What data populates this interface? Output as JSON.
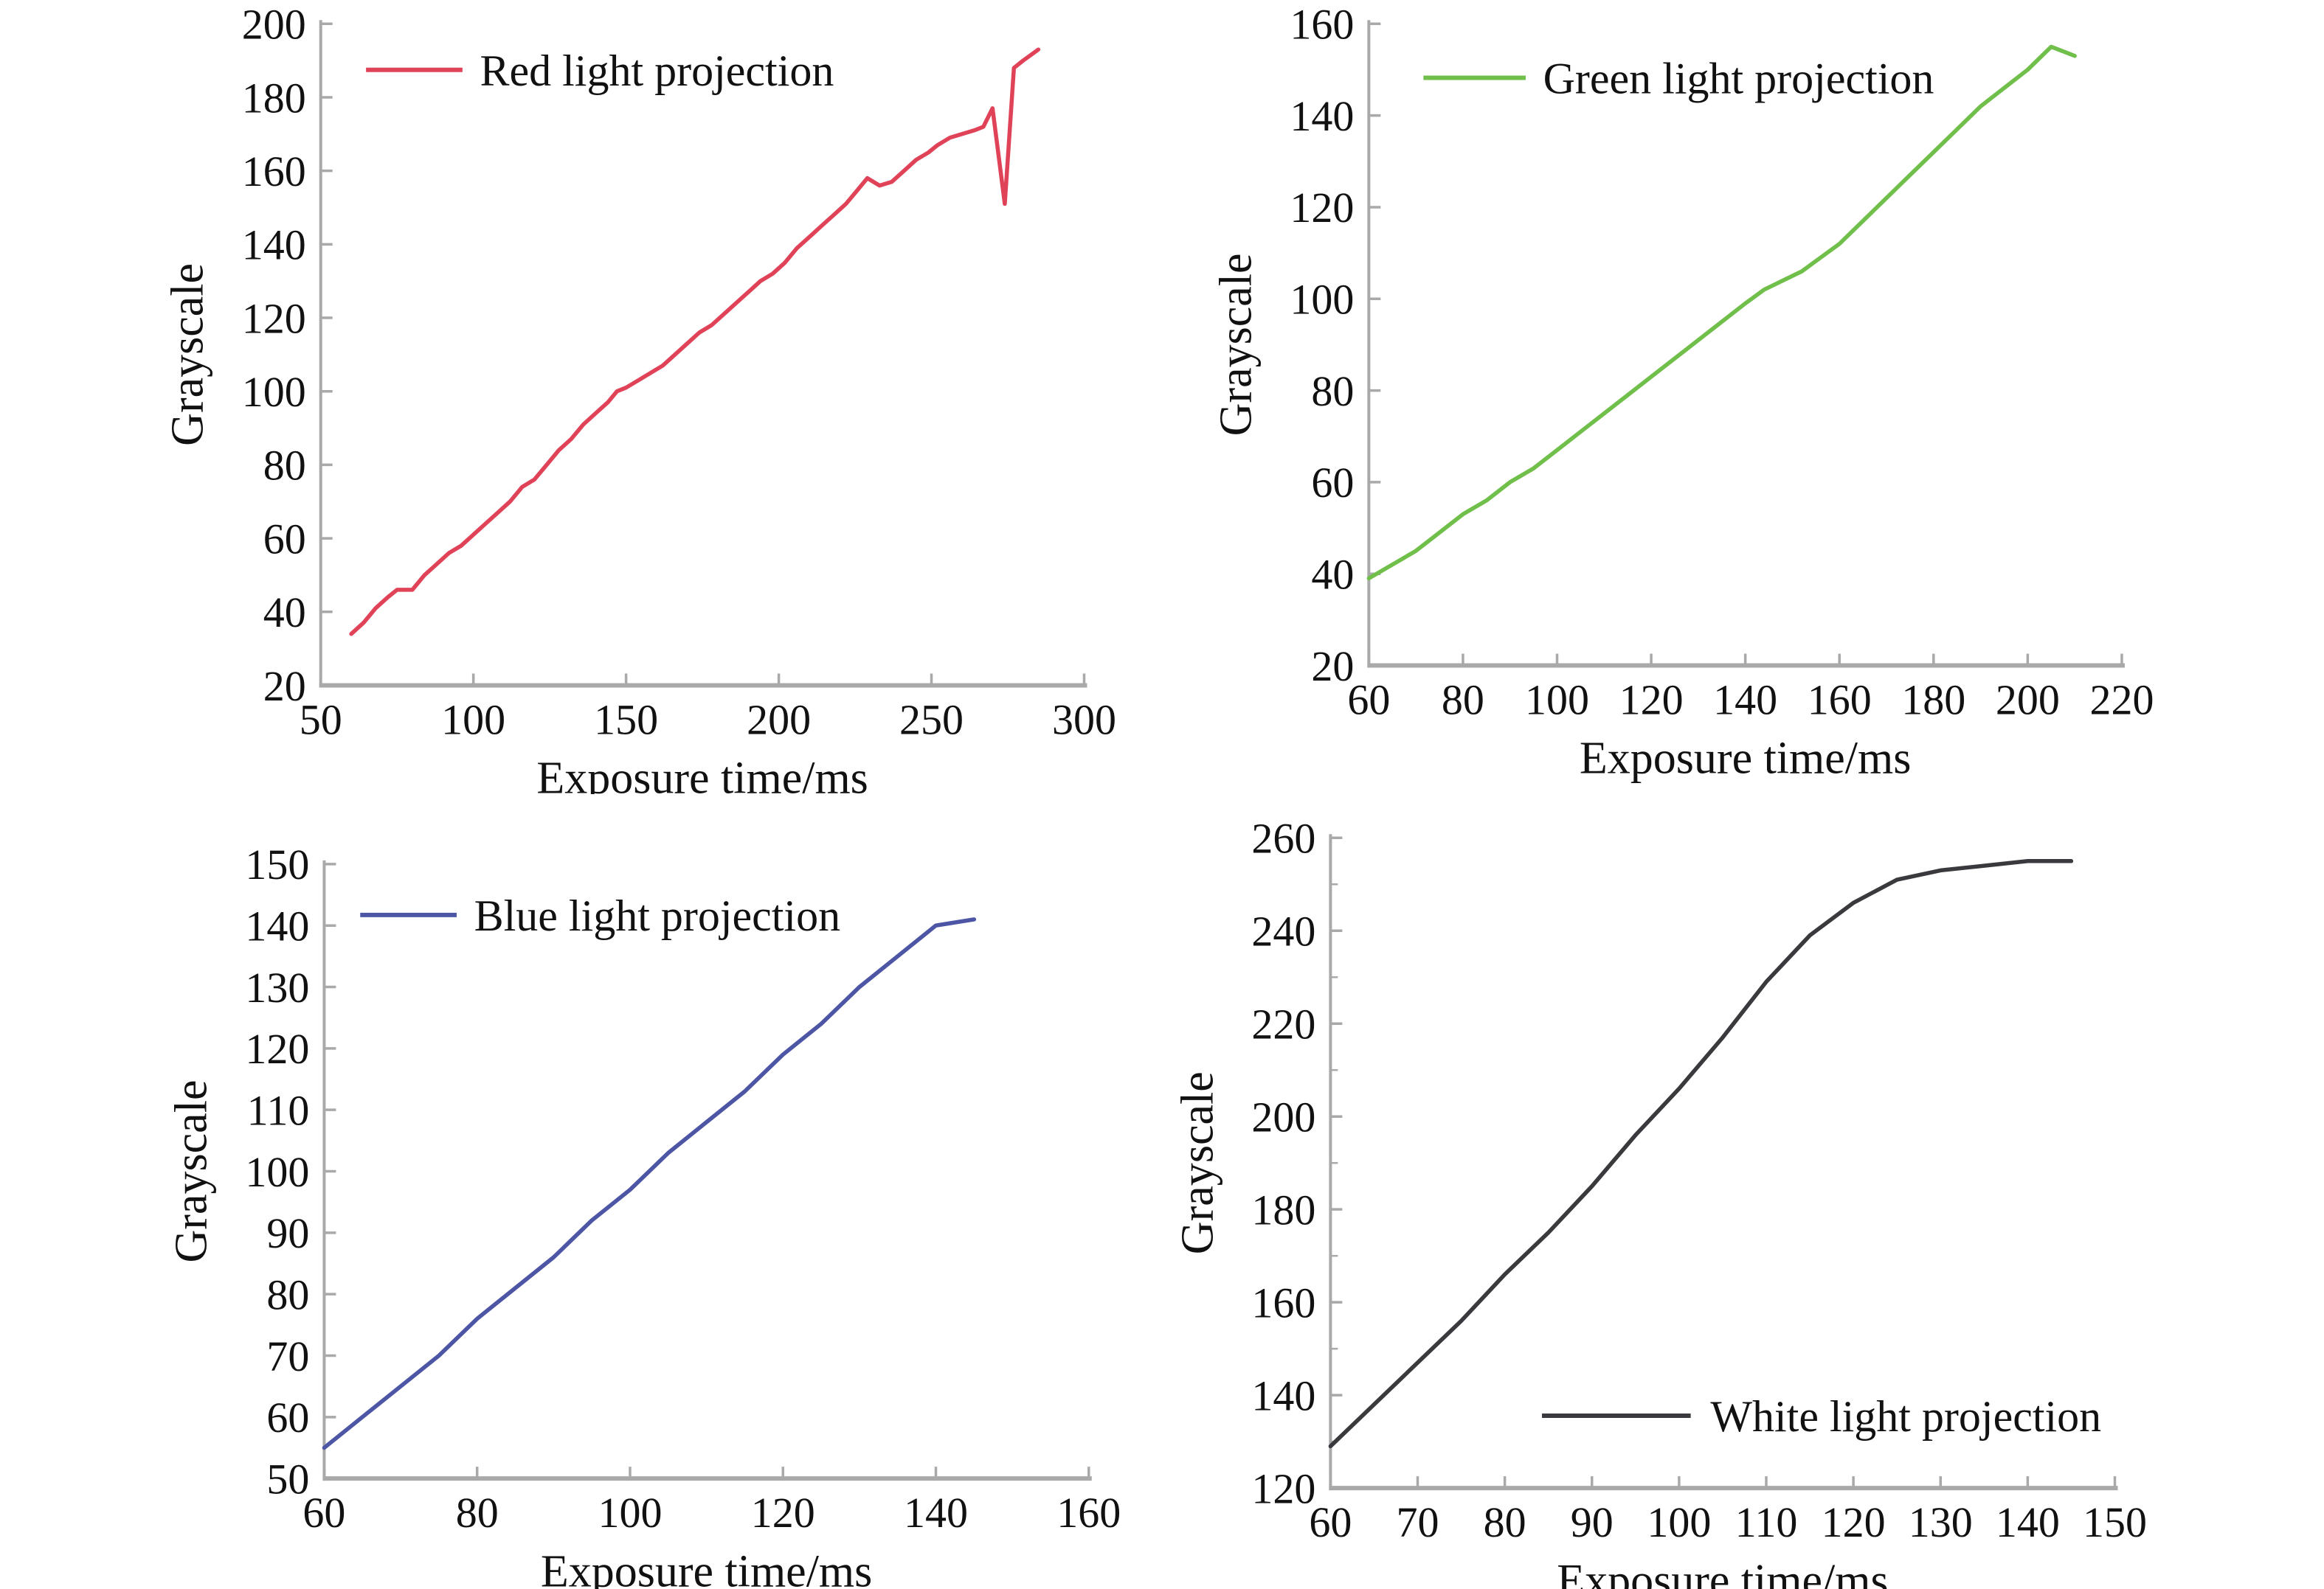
{
  "figure": {
    "description": "Grayscale response versus exposure time for four projection light colors",
    "x_axis_label": "Exposure time/ms",
    "y_axis_label": "Grayscale"
  },
  "chart_data": [
    {
      "type": "line",
      "legend": "Red light projection",
      "color": "#e04358",
      "xlabel": "Exposure time/ms",
      "ylabel": "Grayscale",
      "xlim": [
        50,
        300
      ],
      "ylim": [
        20,
        200
      ],
      "x_ticks": [
        50,
        100,
        150,
        200,
        250,
        300
      ],
      "y_ticks": [
        20,
        40,
        60,
        80,
        100,
        120,
        140,
        160,
        180,
        200
      ],
      "x": [
        60,
        64,
        68,
        72,
        75,
        80,
        84,
        88,
        92,
        96,
        100,
        104,
        108,
        112,
        116,
        120,
        124,
        128,
        132,
        136,
        140,
        144,
        147,
        150,
        154,
        158,
        162,
        166,
        170,
        174,
        178,
        182,
        186,
        190,
        194,
        198,
        202,
        206,
        210,
        214,
        218,
        222,
        226,
        229,
        233,
        237,
        241,
        245,
        249,
        252,
        256,
        260,
        264,
        267,
        270,
        274,
        277,
        280,
        285
      ],
      "y": [
        34,
        37,
        41,
        44,
        46,
        46,
        50,
        53,
        56,
        58,
        61,
        64,
        67,
        70,
        74,
        76,
        80,
        84,
        87,
        91,
        94,
        97,
        100,
        101,
        103,
        105,
        107,
        110,
        113,
        116,
        118,
        121,
        124,
        127,
        130,
        132,
        135,
        139,
        142,
        145,
        148,
        151,
        155,
        158,
        156,
        157,
        160,
        163,
        165,
        167,
        169,
        170,
        171,
        172,
        177,
        151,
        188,
        190,
        193
      ]
    },
    {
      "type": "line",
      "legend": "Green light projection",
      "color": "#6fbf4a",
      "xlabel": "Exposure time/ms",
      "ylabel": "Grayscale",
      "xlim": [
        60,
        220
      ],
      "ylim": [
        20,
        160
      ],
      "x_ticks": [
        60,
        80,
        100,
        120,
        140,
        160,
        180,
        200,
        220
      ],
      "y_ticks": [
        20,
        40,
        60,
        80,
        100,
        120,
        140,
        160
      ],
      "x": [
        60,
        65,
        70,
        75,
        80,
        85,
        90,
        95,
        100,
        105,
        110,
        115,
        120,
        125,
        130,
        135,
        140,
        144,
        148,
        152,
        156,
        160,
        165,
        170,
        175,
        180,
        185,
        190,
        195,
        200,
        205,
        210
      ],
      "y": [
        39,
        42,
        45,
        49,
        53,
        56,
        60,
        63,
        67,
        71,
        75,
        79,
        83,
        87,
        91,
        95,
        99,
        102,
        104,
        106,
        109,
        112,
        117,
        122,
        127,
        132,
        137,
        142,
        146,
        150,
        155,
        153
      ]
    },
    {
      "type": "line",
      "legend": "Blue light projection",
      "color": "#4d55a5",
      "xlabel": "Exposure time/ms",
      "ylabel": "Grayscale",
      "xlim": [
        60,
        160
      ],
      "ylim": [
        50,
        150
      ],
      "x_ticks": [
        60,
        80,
        100,
        120,
        140,
        160
      ],
      "y_ticks": [
        50,
        60,
        70,
        80,
        90,
        100,
        110,
        120,
        130,
        140,
        150
      ],
      "x": [
        60,
        65,
        70,
        75,
        80,
        85,
        90,
        95,
        100,
        105,
        110,
        115,
        120,
        125,
        130,
        135,
        140,
        145
      ],
      "y": [
        55,
        60,
        65,
        70,
        76,
        81,
        86,
        92,
        97,
        103,
        108,
        113,
        119,
        124,
        130,
        135,
        140,
        141
      ]
    },
    {
      "type": "line",
      "legend": "White light projection",
      "color": "#3a3a3e",
      "xlabel": "Exposure time/ms",
      "ylabel": "Grayscale",
      "xlim": [
        60,
        150
      ],
      "ylim": [
        120,
        260
      ],
      "x_ticks": [
        60,
        70,
        80,
        90,
        100,
        110,
        120,
        130,
        140,
        150
      ],
      "y_ticks": [
        120,
        140,
        160,
        180,
        200,
        220,
        240,
        260
      ],
      "y_minor_step": 10,
      "x": [
        60,
        65,
        70,
        75,
        80,
        85,
        90,
        95,
        100,
        105,
        110,
        115,
        120,
        125,
        130,
        135,
        140,
        145
      ],
      "y": [
        129,
        138,
        147,
        156,
        166,
        175,
        185,
        196,
        206,
        217,
        229,
        239,
        246,
        251,
        253,
        254,
        255,
        255
      ]
    }
  ],
  "style": {
    "axis_color": "#a9a9a9",
    "text_color": "#111111"
  }
}
